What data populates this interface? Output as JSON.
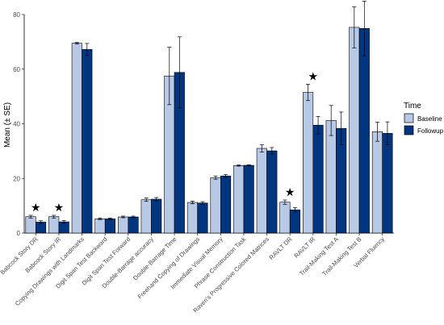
{
  "chart_data": {
    "type": "bar",
    "ylabel": "Mean (± SE)",
    "ylim": [
      0,
      80
    ],
    "yticks": [
      0,
      20,
      40,
      60,
      80
    ],
    "categories": [
      "Babcock Story DR",
      "Babcock Story IR",
      "Copying Drawings with Landmarks",
      "Digit Span Test Backward",
      "Digit Span Test Forward",
      "Double-Barrage accuracy",
      "Double-Barrage Time",
      "Freehand Copying of Drawings",
      "Immediate Visual Memory",
      "Phrase Construction Task",
      "Raven's Progressive Colored Matrices",
      "RAVLT DR",
      "RAVLT IR",
      "Trail-Making Test A",
      "Trail-Making Test B",
      "Verbal Fluency"
    ],
    "legend_title": "Time",
    "legend_position": "right",
    "series": [
      {
        "name": "Baseline",
        "color": "#b8c9e6",
        "values": [
          6.0,
          6.0,
          69.5,
          5.2,
          5.9,
          12.2,
          57.5,
          11.2,
          20.3,
          24.7,
          31.0,
          11.3,
          51.5,
          41.2,
          75.3,
          37.1
        ],
        "se": [
          0.5,
          0.5,
          0.3,
          0.3,
          0.3,
          0.6,
          10.5,
          0.5,
          0.6,
          0.2,
          1.3,
          0.8,
          3.0,
          5.5,
          7.5,
          3.5
        ]
      },
      {
        "name": "Followup",
        "color": "#003580",
        "values": [
          4.0,
          4.1,
          67.2,
          5.2,
          5.9,
          12.4,
          58.8,
          11.0,
          20.9,
          24.8,
          30.1,
          8.5,
          39.5,
          38.3,
          74.9,
          36.5
        ],
        "se": [
          0.5,
          0.5,
          2.2,
          0.3,
          0.3,
          0.6,
          13.0,
          0.5,
          0.5,
          0.2,
          1.2,
          0.8,
          3.2,
          6.0,
          10.0,
          4.2
        ]
      }
    ],
    "significant": [
      "Babcock Story DR",
      "Babcock Story IR",
      "RAVLT DR",
      "RAVLT IR"
    ],
    "significance_marker": "★",
    "grid": false
  }
}
